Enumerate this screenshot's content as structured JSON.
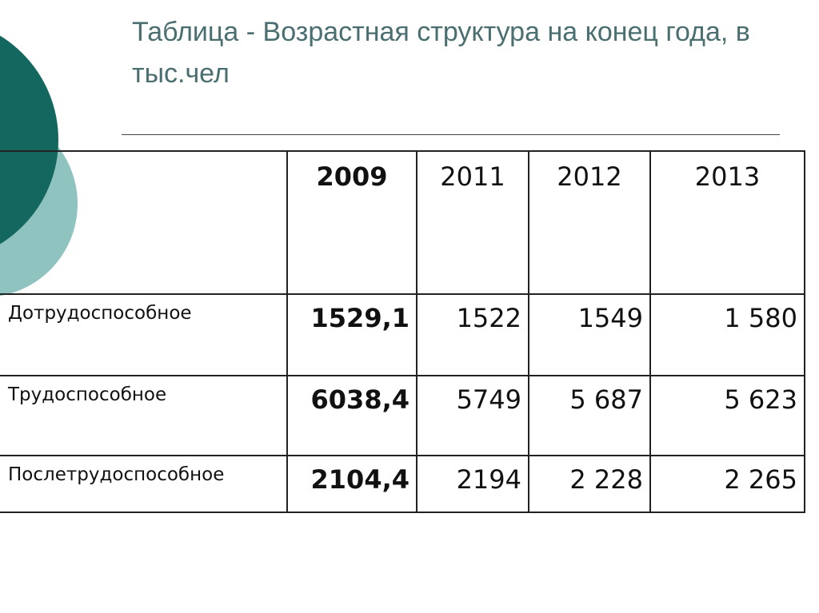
{
  "header": {
    "title": "Таблица - Возрастная структура на конец года, в тыс.чел"
  },
  "table": {
    "columns": [
      "2009",
      "2011",
      "2012",
      "2013"
    ],
    "rows": [
      {
        "label": "Дотрудоспособное",
        "values": [
          "1529,1",
          "1522",
          "1549",
          "1 580"
        ]
      },
      {
        "label": "Трудоспособное",
        "values": [
          "6038,4",
          "5749",
          "5 687",
          "5 623"
        ]
      },
      {
        "label": "Послетрудоспособное",
        "values": [
          "2104,4",
          "2194",
          "2 228",
          "2 265"
        ]
      }
    ]
  }
}
